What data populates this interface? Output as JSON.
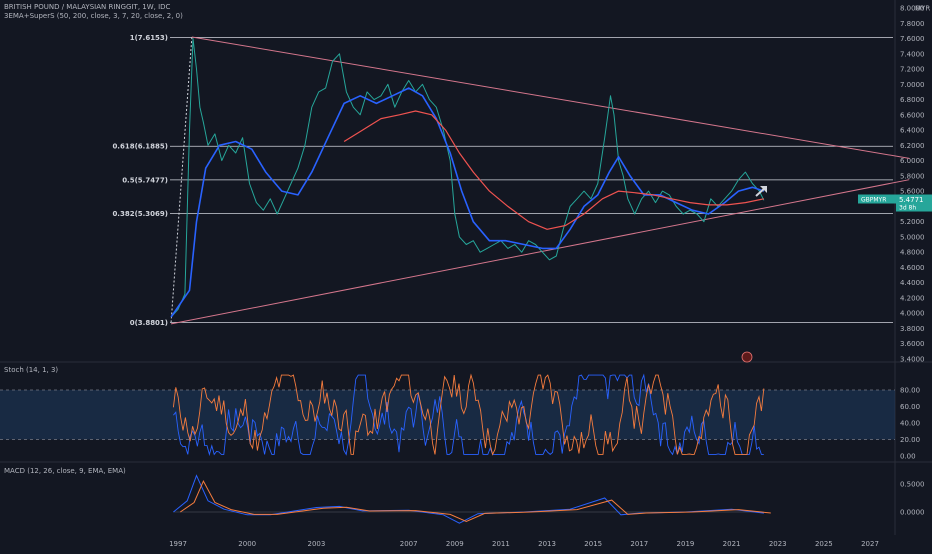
{
  "header": {
    "symbol_line": "BRITISH POUND / MALAYSIAN RINGGIT, 1W, IDC",
    "indicator_line": "3EMA+SuperS (50, 200, close, 3, 7, 20, close, 2, 0)"
  },
  "price_axis": {
    "unit": "MYR",
    "ticks": [
      "8.0000",
      "7.8000",
      "7.6000",
      "7.4000",
      "7.2000",
      "7.0000",
      "6.8000",
      "6.6000",
      "6.4000",
      "6.2000",
      "6.0000",
      "5.8000",
      "5.6000",
      "5.4000",
      "5.2000",
      "5.0000",
      "4.8000",
      "4.6000",
      "4.4000",
      "4.2000",
      "4.0000",
      "3.8000",
      "3.6000",
      "3.4000"
    ],
    "last_price_symbol": "GBPMYR",
    "last_price": "5.4771",
    "countdown": "3d 8h"
  },
  "fib_levels": [
    {
      "label": "1(7.6153)",
      "value": 7.6153
    },
    {
      "label": "0.618(6.1885)",
      "value": 6.1885
    },
    {
      "label": "0.5(5.7477)",
      "value": 5.7477
    },
    {
      "label": "0.382(5.3069)",
      "value": 5.3069
    },
    {
      "label": "0(3.8801)",
      "value": 3.8801
    }
  ],
  "trendlines": {
    "upper": {
      "start_date": 1997.6,
      "start_price": 7.62,
      "end_date": 2028.7,
      "end_price": 6.03
    },
    "lower": {
      "start_date": 1996.7,
      "start_price": 3.86,
      "end_date": 2028.7,
      "end_price": 5.75
    }
  },
  "stoch": {
    "label": "Stoch (14, 1, 3)",
    "ticks": [
      "80.00",
      "60.00",
      "40.00",
      "20.00",
      "0.00"
    ],
    "band": [
      20,
      80
    ]
  },
  "macd": {
    "label": "MACD (12, 26, close, 9, EMA, EMA)",
    "ticks": [
      "0.5000",
      "0.0000"
    ]
  },
  "time_axis": {
    "labels": [
      "1997",
      "2000",
      "2003",
      "2007",
      "2009",
      "2011",
      "2013",
      "2015",
      "2017",
      "2019",
      "2021",
      "2023",
      "2025",
      "2027"
    ]
  },
  "colors": {
    "background": "#131722",
    "price": "#26a69a",
    "ema_fast": "#2962ff",
    "ema_slow": "#ef5350",
    "trendline": "#d4768c",
    "stoch_k": "#2962ff",
    "stoch_d": "#f57c3e",
    "band_fill": "#1e3a5f",
    "fib_line": "#d1d4dc"
  },
  "chart_data": {
    "type": "line",
    "title": "BRITISH POUND / MALAYSIAN RINGGIT, 1W, IDC",
    "ylim": [
      3.4,
      8.0
    ],
    "x_unit": "year",
    "series": [
      {
        "name": "GBPMYR",
        "x": [
          1996.7,
          1997.0,
          1997.3,
          1997.5,
          1997.65,
          1997.8,
          1997.95,
          1998.1,
          1998.3,
          1998.6,
          1998.9,
          1999.2,
          1999.5,
          1999.8,
          2000.1,
          2000.4,
          2000.7,
          2001.0,
          2001.3,
          2001.6,
          2001.9,
          2002.2,
          2002.5,
          2002.8,
          2003.1,
          2003.4,
          2003.7,
          2004.0,
          2004.3,
          2004.6,
          2004.9,
          2005.2,
          2005.5,
          2005.8,
          2006.1,
          2006.4,
          2006.7,
          2007.0,
          2007.3,
          2007.6,
          2007.9,
          2008.2,
          2008.5,
          2008.8,
          2009.0,
          2009.2,
          2009.5,
          2009.8,
          2010.1,
          2010.4,
          2010.7,
          2011.0,
          2011.3,
          2011.6,
          2011.9,
          2012.2,
          2012.5,
          2012.8,
          2013.1,
          2013.4,
          2013.7,
          2014.0,
          2014.3,
          2014.6,
          2014.9,
          2015.2,
          2015.5,
          2015.75,
          2015.9,
          2016.1,
          2016.3,
          2016.5,
          2016.8,
          2017.1,
          2017.4,
          2017.7,
          2018.0,
          2018.3,
          2018.6,
          2018.9,
          2019.2,
          2019.5,
          2019.8,
          2020.1,
          2020.4,
          2020.7,
          2021.0,
          2021.3,
          2021.6,
          2021.9,
          2022.2,
          2022.4
        ],
        "y": [
          3.95,
          4.05,
          4.25,
          6.4,
          7.6,
          7.2,
          6.7,
          6.5,
          6.2,
          6.35,
          6.0,
          6.2,
          6.1,
          6.3,
          5.7,
          5.45,
          5.35,
          5.5,
          5.3,
          5.5,
          5.7,
          5.9,
          6.2,
          6.7,
          6.9,
          6.95,
          7.3,
          7.4,
          6.9,
          6.7,
          6.6,
          6.9,
          6.8,
          6.85,
          7.0,
          6.7,
          6.9,
          7.05,
          6.9,
          7.0,
          6.8,
          6.7,
          6.4,
          6.0,
          5.3,
          5.0,
          4.9,
          4.95,
          4.8,
          4.85,
          4.9,
          4.95,
          4.85,
          4.9,
          4.8,
          4.95,
          4.9,
          4.8,
          4.7,
          4.75,
          5.1,
          5.4,
          5.5,
          5.6,
          5.5,
          5.7,
          6.3,
          6.85,
          6.6,
          6.0,
          5.8,
          5.5,
          5.3,
          5.5,
          5.6,
          5.45,
          5.6,
          5.55,
          5.4,
          5.3,
          5.35,
          5.3,
          5.2,
          5.5,
          5.4,
          5.5,
          5.6,
          5.75,
          5.85,
          5.7,
          5.6,
          5.48
        ]
      },
      {
        "name": "EMA 50",
        "x": [
          1996.7,
          1997.5,
          1997.8,
          1998.2,
          1998.8,
          1999.5,
          2000.2,
          2000.8,
          2001.5,
          2002.2,
          2002.8,
          2003.5,
          2004.2,
          2004.9,
          2005.6,
          2006.3,
          2007.0,
          2007.6,
          2008.2,
          2008.8,
          2009.3,
          2009.8,
          2010.5,
          2011.2,
          2012.0,
          2012.8,
          2013.4,
          2014.0,
          2014.6,
          2015.2,
          2015.7,
          2016.1,
          2016.6,
          2017.2,
          2017.9,
          2018.6,
          2019.3,
          2020.0,
          2020.7,
          2021.3,
          2021.9,
          2022.4
        ],
        "y": [
          3.95,
          4.3,
          5.2,
          5.9,
          6.2,
          6.25,
          6.15,
          5.85,
          5.6,
          5.55,
          5.85,
          6.3,
          6.75,
          6.85,
          6.75,
          6.85,
          6.95,
          6.85,
          6.55,
          6.1,
          5.6,
          5.2,
          4.95,
          4.95,
          4.9,
          4.85,
          4.85,
          5.1,
          5.4,
          5.55,
          5.85,
          6.05,
          5.8,
          5.55,
          5.55,
          5.45,
          5.35,
          5.3,
          5.45,
          5.6,
          5.65,
          5.6
        ]
      },
      {
        "name": "EMA 200",
        "x": [
          2004.2,
          2005.0,
          2005.8,
          2006.6,
          2007.3,
          2008.0,
          2008.6,
          2009.2,
          2009.8,
          2010.5,
          2011.3,
          2012.2,
          2013.0,
          2013.8,
          2014.6,
          2015.4,
          2016.1,
          2016.8,
          2017.6,
          2018.4,
          2019.2,
          2020.0,
          2020.8,
          2021.6,
          2022.4
        ],
        "y": [
          6.25,
          6.4,
          6.55,
          6.6,
          6.65,
          6.6,
          6.4,
          6.1,
          5.85,
          5.6,
          5.4,
          5.2,
          5.1,
          5.15,
          5.3,
          5.5,
          5.6,
          5.58,
          5.55,
          5.5,
          5.45,
          5.42,
          5.42,
          5.45,
          5.5
        ]
      }
    ],
    "annotations": [
      "1(7.6153)",
      "0.618(6.1885)",
      "0.5(5.7477)",
      "0.382(5.3069)",
      "0(3.8801)"
    ]
  }
}
